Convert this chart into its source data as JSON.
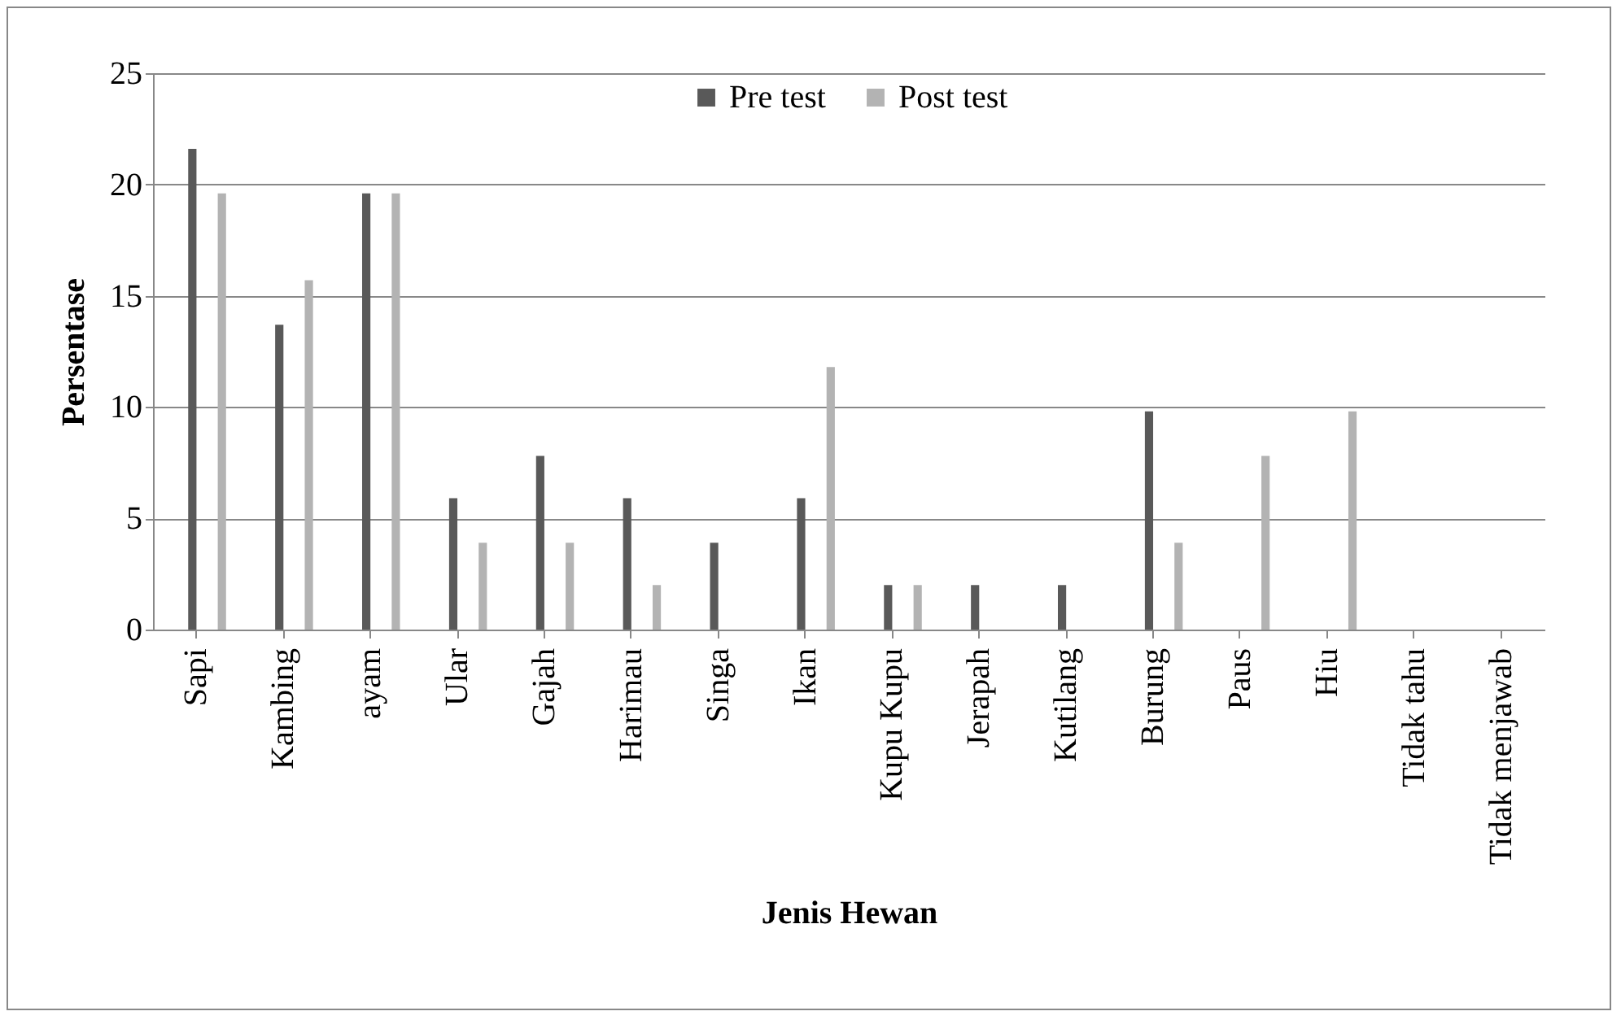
{
  "chart_data": {
    "type": "bar",
    "xlabel": "Jenis  Hewan",
    "ylabel": "Persentase",
    "categories": [
      "Sapi",
      "Kambing",
      "ayam",
      "Ular",
      "Gajah",
      "Harimau",
      "Singa",
      "Ikan",
      "Kupu Kupu",
      "Jerapah",
      "Kutilang",
      "Burung",
      "Paus",
      "Hiu",
      "Tidak tahu",
      "Tidak menjawab"
    ],
    "series": [
      {
        "name": "Pre test",
        "color": "#595959",
        "values": [
          21.6,
          13.7,
          19.6,
          5.9,
          7.8,
          5.9,
          3.9,
          5.9,
          2.0,
          2.0,
          2.0,
          9.8,
          0,
          0,
          0,
          0
        ]
      },
      {
        "name": "Post test",
        "color": "#b3b3b3",
        "values": [
          19.6,
          15.7,
          19.6,
          3.9,
          3.9,
          2.0,
          0,
          11.8,
          2.0,
          0,
          0,
          3.9,
          7.8,
          9.8,
          0,
          0
        ]
      }
    ],
    "ylim": [
      0,
      25
    ],
    "yticks": [
      0,
      5,
      10,
      15,
      20,
      25
    ],
    "grid": "y",
    "legend": "top"
  }
}
